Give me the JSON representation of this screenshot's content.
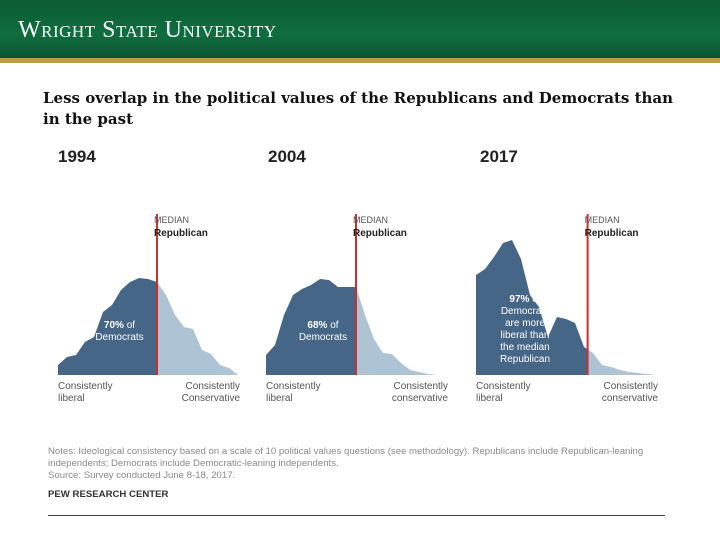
{
  "header": {
    "title": "Wright State University"
  },
  "slide": {
    "title": "Less overlap in the political values of the Republicans and Democrats than in the past"
  },
  "colors": {
    "democrats": "#466688",
    "republicans": "#aec3d3",
    "median_line": "#c8302c",
    "header_green": "#0f6e3e",
    "header_gold": "#b79a4a"
  },
  "chart_data": [
    {
      "type": "area",
      "title": "1994",
      "median_label": "MEDIAN",
      "median_party": "Republican",
      "annotation_value": "70%",
      "annotation_text": [
        "of",
        "Democrats"
      ],
      "xlabel_left": [
        "Consistently",
        "liberal"
      ],
      "xlabel_right": [
        "Consistently",
        "Conservative"
      ],
      "median_position": 5.5,
      "x": [
        0,
        0.5,
        1,
        1.5,
        2,
        2.5,
        3,
        3.5,
        4,
        4.5,
        5,
        5.5,
        6,
        6.5,
        7,
        7.5,
        8,
        8.5,
        9,
        9.5,
        10
      ],
      "values": [
        10,
        18,
        20,
        33,
        38,
        63,
        70,
        85,
        93,
        97,
        96,
        93,
        80,
        60,
        48,
        46,
        25,
        21,
        10,
        7,
        0
      ]
    },
    {
      "type": "area",
      "title": "2004",
      "median_label": "MEDIAN",
      "median_party": "Republican",
      "annotation_value": "68%",
      "annotation_text": [
        "of",
        "Democrats"
      ],
      "xlabel_left": [
        "Consistently",
        "liberal"
      ],
      "xlabel_right": [
        "Consistently",
        "conservative"
      ],
      "median_position": 5.0,
      "x": [
        0,
        0.5,
        1,
        1.5,
        2,
        2.5,
        3,
        3.5,
        4,
        4.5,
        5,
        5.5,
        6,
        6.5,
        7,
        7.5,
        8,
        8.5,
        9,
        9.5,
        10
      ],
      "values": [
        20,
        30,
        60,
        80,
        86,
        90,
        96,
        95,
        88,
        88,
        88,
        60,
        36,
        22,
        21,
        12,
        5,
        3,
        1,
        0,
        0
      ]
    },
    {
      "type": "area",
      "title": "2017",
      "median_label": "MEDIAN",
      "median_party": "Republican",
      "annotation_value": "97%",
      "annotation_text": [
        "of",
        "Democrats",
        "are more",
        "liberal than",
        "the median",
        "Republican"
      ],
      "xlabel_left": [
        "Consistently",
        "liberal"
      ],
      "xlabel_right": [
        "Consistently",
        "conservative"
      ],
      "median_position": 6.2,
      "x": [
        0,
        0.5,
        1,
        1.5,
        2,
        2.5,
        3,
        3.5,
        4,
        4.5,
        5,
        5.5,
        6,
        6.5,
        7,
        7.5,
        8,
        8.5,
        9,
        9.5,
        10
      ],
      "values": [
        100,
        106,
        118,
        132,
        135,
        116,
        80,
        68,
        38,
        58,
        56,
        52,
        28,
        22,
        10,
        8,
        5,
        3,
        2,
        1,
        0
      ]
    }
  ],
  "notes": {
    "line1": "Notes: Ideological consistency based on a scale of 10 political values questions (see methodology). Republicans include Republican-leaning",
    "line2": "independents; Democrats include Democratic-leaning independents.",
    "line3": "Source: Survey conducted June 8-18, 2017.",
    "org": "PEW RESEARCH CENTER"
  }
}
